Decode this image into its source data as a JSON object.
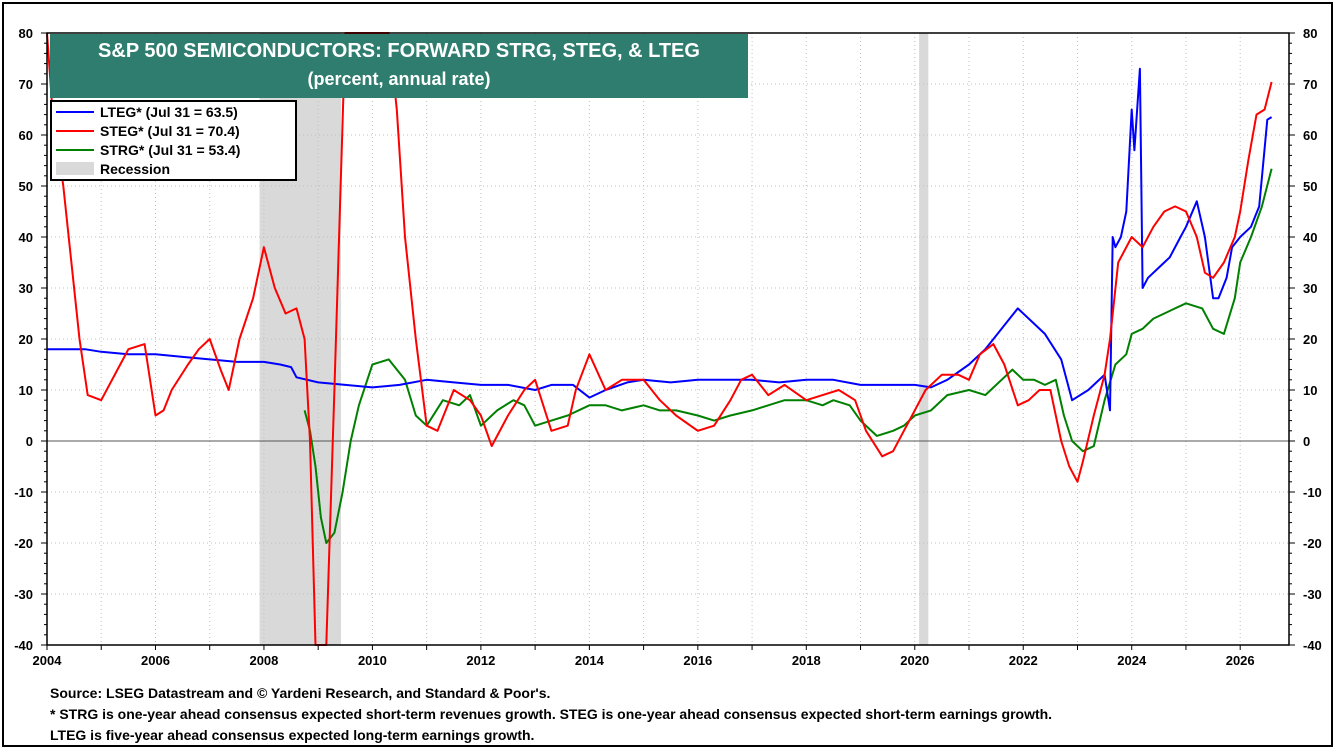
{
  "chart_data": {
    "type": "line",
    "title": "S&P 500 SEMICONDUCTORS: FORWARD STRG, STEG, & LTEG",
    "subtitle": "(percent, annual rate)",
    "xlim": [
      2004,
      2026.9
    ],
    "ylim": [
      -40,
      80
    ],
    "x_ticks": [
      "2004",
      "2006",
      "2008",
      "2010",
      "2012",
      "2014",
      "2016",
      "2018",
      "2020",
      "2022",
      "2024",
      "2026"
    ],
    "y_ticks": [
      80,
      70,
      60,
      50,
      40,
      30,
      20,
      10,
      0,
      -10,
      -20,
      -30,
      -40
    ],
    "grid": true,
    "legend_position": "top-left",
    "recessions": [
      [
        2007.92,
        2009.42
      ],
      [
        2020.08,
        2020.25
      ]
    ],
    "series": [
      {
        "name": "LTEG* (Jul 31 = 63.5)",
        "color": "#0000ff",
        "x": [
          2004.0,
          2004.5,
          2004.7,
          2005.0,
          2005.5,
          2006.0,
          2006.5,
          2007.0,
          2007.5,
          2008.0,
          2008.3,
          2008.5,
          2008.6,
          2009.0,
          2009.5,
          2010.0,
          2010.5,
          2011.0,
          2011.5,
          2012.0,
          2012.5,
          2013.0,
          2013.3,
          2013.7,
          2014.0,
          2014.3,
          2014.7,
          2015.0,
          2015.5,
          2016.0,
          2016.5,
          2017.0,
          2017.5,
          2018.0,
          2018.5,
          2019.0,
          2019.5,
          2020.0,
          2020.3,
          2020.6,
          2021.0,
          2021.3,
          2021.6,
          2021.9,
          2022.1,
          2022.4,
          2022.7,
          2022.9,
          2023.2,
          2023.5,
          2023.6,
          2023.65,
          2023.7,
          2023.8,
          2023.9,
          2024.0,
          2024.05,
          2024.15,
          2024.2,
          2024.3,
          2024.5,
          2024.7,
          2024.9,
          2025.0,
          2025.2,
          2025.35,
          2025.5,
          2025.6,
          2025.75,
          2025.85,
          2026.0,
          2026.2,
          2026.35,
          2026.5,
          2026.58
        ],
        "values": [
          18,
          18,
          18,
          17.5,
          17,
          17,
          16.5,
          16,
          15.5,
          15.5,
          15,
          14.5,
          12.5,
          11.5,
          11,
          10.5,
          11,
          12,
          11.5,
          11,
          11,
          10,
          11,
          11,
          8.5,
          10,
          11.5,
          12,
          11.5,
          12,
          12,
          12,
          11.5,
          12,
          12,
          11,
          11,
          11,
          10.5,
          12,
          15,
          18,
          22,
          26,
          24,
          21,
          16,
          8,
          10,
          13,
          6,
          40,
          38,
          40,
          45,
          65,
          57,
          73,
          30,
          32,
          34,
          36,
          40,
          42,
          47,
          40,
          28,
          28,
          32,
          38,
          40,
          42,
          46,
          63,
          63.5
        ]
      },
      {
        "name": "STEG* (Jul 31 = 70.4)",
        "color": "#ff0000",
        "x": [
          2004.0,
          2004.1,
          2004.3,
          2004.45,
          2004.6,
          2004.75,
          2005.0,
          2005.3,
          2005.5,
          2005.8,
          2006.0,
          2006.15,
          2006.3,
          2006.6,
          2006.8,
          2007.0,
          2007.2,
          2007.35,
          2007.55,
          2007.8,
          2008.0,
          2008.2,
          2008.4,
          2008.6,
          2008.75,
          2008.85,
          2008.95,
          2009.05,
          2009.15,
          2009.3,
          2009.5,
          2009.7,
          2009.85,
          2010.0,
          2010.3,
          2010.45,
          2010.6,
          2010.8,
          2011.0,
          2011.2,
          2011.5,
          2011.8,
          2012.0,
          2012.2,
          2012.5,
          2012.8,
          2013.0,
          2013.3,
          2013.6,
          2013.75,
          2014.0,
          2014.3,
          2014.6,
          2015.0,
          2015.3,
          2015.6,
          2016.0,
          2016.3,
          2016.6,
          2016.8,
          2017.0,
          2017.3,
          2017.6,
          2018.0,
          2018.3,
          2018.6,
          2018.9,
          2019.1,
          2019.4,
          2019.6,
          2019.8,
          2020.0,
          2020.2,
          2020.5,
          2020.8,
          2021.0,
          2021.2,
          2021.45,
          2021.65,
          2021.9,
          2022.1,
          2022.3,
          2022.5,
          2022.7,
          2022.85,
          2023.0,
          2023.1,
          2023.3,
          2023.5,
          2023.6,
          2023.75,
          2024.0,
          2024.2,
          2024.4,
          2024.6,
          2024.8,
          2025.0,
          2025.2,
          2025.35,
          2025.5,
          2025.7,
          2025.9,
          2026.0,
          2026.15,
          2026.3,
          2026.45,
          2026.58
        ],
        "values": [
          80,
          65,
          50,
          35,
          20,
          9,
          8,
          14,
          18,
          19,
          5,
          6,
          10,
          15,
          18,
          20,
          14,
          10,
          20,
          28,
          38,
          30,
          25,
          26,
          20,
          0,
          -40,
          -40,
          -40,
          10,
          80,
          80,
          80,
          80,
          80,
          65,
          40,
          20,
          3,
          2,
          10,
          8,
          5,
          -1,
          5,
          10,
          12,
          2,
          3,
          10,
          17,
          10,
          12,
          12,
          8,
          5,
          2,
          3,
          8,
          12,
          13,
          9,
          11,
          8,
          9,
          10,
          8,
          2,
          -3,
          -2,
          2,
          6,
          10,
          13,
          13,
          12,
          17,
          19,
          15,
          7,
          8,
          10,
          10,
          0,
          -5,
          -8,
          -4,
          5,
          13,
          20,
          35,
          40,
          38,
          42,
          45,
          46,
          45,
          40,
          33,
          32,
          35,
          40,
          45,
          55,
          64,
          65,
          70.4
        ]
      },
      {
        "name": "STRG* (Jul 31 = 53.4)",
        "color": "#008000",
        "x": [
          2008.75,
          2008.85,
          2008.95,
          2009.05,
          2009.15,
          2009.3,
          2009.45,
          2009.6,
          2009.75,
          2010.0,
          2010.3,
          2010.6,
          2010.8,
          2011.0,
          2011.3,
          2011.6,
          2011.8,
          2012.0,
          2012.3,
          2012.6,
          2012.8,
          2013.0,
          2013.3,
          2013.6,
          2014.0,
          2014.3,
          2014.6,
          2015.0,
          2015.3,
          2015.6,
          2016.0,
          2016.3,
          2016.6,
          2017.0,
          2017.3,
          2017.6,
          2018.0,
          2018.3,
          2018.5,
          2018.8,
          2019.0,
          2019.3,
          2019.6,
          2019.8,
          2020.0,
          2020.3,
          2020.6,
          2021.0,
          2021.3,
          2021.6,
          2021.8,
          2022.0,
          2022.2,
          2022.4,
          2022.6,
          2022.75,
          2022.9,
          2023.1,
          2023.3,
          2023.5,
          2023.7,
          2023.9,
          2024.0,
          2024.2,
          2024.4,
          2024.6,
          2024.8,
          2025.0,
          2025.3,
          2025.5,
          2025.7,
          2025.9,
          2026.0,
          2026.2,
          2026.4,
          2026.58
        ],
        "values": [
          6,
          2,
          -5,
          -15,
          -20,
          -18,
          -10,
          0,
          7,
          15,
          16,
          12,
          5,
          3,
          8,
          7,
          9,
          3,
          6,
          8,
          7,
          3,
          4,
          5,
          7,
          7,
          6,
          7,
          6,
          6,
          5,
          4,
          5,
          6,
          7,
          8,
          8,
          7,
          8,
          7,
          4,
          1,
          2,
          3,
          5,
          6,
          9,
          10,
          9,
          12,
          14,
          12,
          12,
          11,
          12,
          5,
          0,
          -2,
          -1,
          8,
          15,
          17,
          21,
          22,
          24,
          25,
          26,
          27,
          26,
          22,
          21,
          28,
          35,
          40,
          46,
          53.4
        ]
      },
      {
        "name": "Recession",
        "color": "#d9d9d9"
      }
    ]
  },
  "notes": {
    "source": "Source: LSEG Datastream and © Yardeni Research, and Standard & Poor's.",
    "line2": "* STRG is one-year ahead consensus expected short-term revenues growth. STEG is one-year ahead consensus expected short-term earnings growth.",
    "line3": "LTEG is five-year ahead consensus expected long-term earnings growth."
  }
}
